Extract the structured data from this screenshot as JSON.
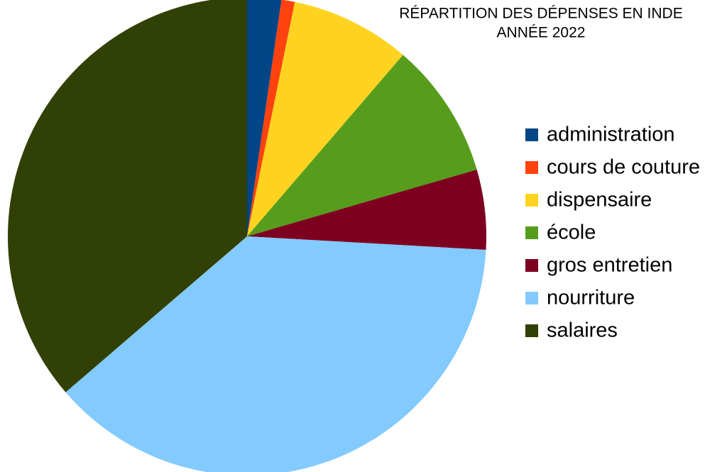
{
  "chart_data": {
    "type": "pie",
    "title": "RÉPARTITION DES DÉPENSES EN INDE",
    "subtitle": "ANNÉE 2022",
    "categories": [
      "administration",
      "cours de couture",
      "dispensaire",
      "école",
      "gros entretien",
      "nourriture",
      "salaires"
    ],
    "values": [
      2.3,
      0.9,
      8.1,
      9.2,
      5.4,
      37.8,
      36.3
    ],
    "colors": [
      "#004586",
      "#ff420e",
      "#ffd320",
      "#579d1c",
      "#7e0021",
      "#83caff",
      "#314004"
    ],
    "legend": "right"
  }
}
